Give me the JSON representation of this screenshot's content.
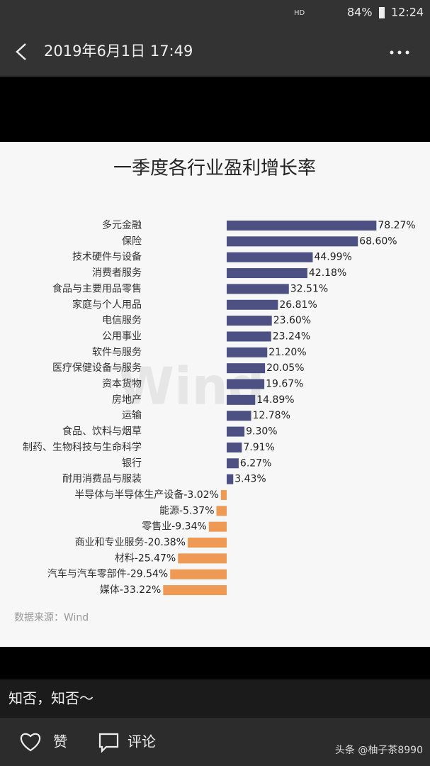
{
  "status_bar": {
    "network": "HD",
    "battery": "84%",
    "time": "12:24"
  },
  "header": {
    "title": "2019年6月1日 17:49"
  },
  "chart_data": {
    "type": "bar",
    "orientation": "horizontal",
    "title": "一季度各行业盈利增长率",
    "categories": [
      "多元金融",
      "保险",
      "技术硬件与设备",
      "消费者服务",
      "食品与主要用品零售",
      "家庭与个人用品",
      "电信服务",
      "公用事业",
      "软件与服务",
      "医疗保健设备与服务",
      "资本货物",
      "房地产",
      "运输",
      "食品、饮料与烟草",
      "制药、生物科技与生命科学",
      "银行",
      "耐用消费品与服装",
      "半导体与半导体生产设备",
      "能源",
      "零售业",
      "商业和专业服务",
      "材料",
      "汽车与汽车零部件",
      "媒体"
    ],
    "values": [
      78.27,
      68.6,
      44.99,
      42.18,
      32.51,
      26.81,
      23.6,
      23.24,
      21.2,
      20.05,
      19.67,
      14.89,
      12.78,
      9.3,
      7.91,
      6.27,
      3.43,
      -3.02,
      -5.37,
      -9.34,
      -20.38,
      -25.47,
      -29.54,
      -33.22
    ],
    "value_labels": [
      "78.27%",
      "68.60%",
      "44.99%",
      "42.18%",
      "32.51%",
      "26.81%",
      "23.60%",
      "23.24%",
      "21.20%",
      "20.05%",
      "19.67%",
      "14.89%",
      "12.78%",
      "9.30%",
      "7.91%",
      "6.27%",
      "3.43%",
      "-3.02%",
      "-5.37%",
      "-9.34%",
      "-20.38%",
      "-25.47%",
      "-29.54%",
      "-33.22%"
    ],
    "color": "#4d5082",
    "negative_color": "#ee9a55",
    "source": "数据来源：Wind",
    "watermark": "Wind"
  },
  "caption": "知否，知否～",
  "footer": {
    "like": "赞",
    "comment": "评论",
    "brand": "头条 @柚子茶8990"
  }
}
